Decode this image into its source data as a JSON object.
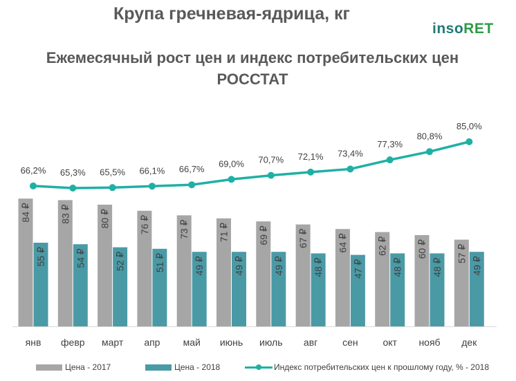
{
  "header": {
    "title": "Крупа гречневая-ядрица, кг",
    "subtitle_line1": "Ежемесячный рост цен и индекс потребительских цен",
    "subtitle_line2": "РОССТАТ",
    "logo_part1": "inso",
    "logo_part2": "RET"
  },
  "chart_data": {
    "type": "bar",
    "categories": [
      "янв",
      "февр",
      "март",
      "апр",
      "май",
      "июнь",
      "июль",
      "авг",
      "сен",
      "окт",
      "нояб",
      "дек"
    ],
    "series": [
      {
        "name": "Цена  - 2017",
        "type": "bar",
        "color": "#a6a6a6",
        "values": [
          84,
          83,
          80,
          76,
          73,
          71,
          69,
          67,
          64,
          62,
          60,
          57
        ],
        "labels": [
          "84 ₽",
          "83 ₽",
          "80 ₽",
          "76 ₽",
          "73 ₽",
          "71 ₽",
          "69 ₽",
          "67 ₽",
          "64 ₽",
          "62 ₽",
          "60 ₽",
          "57 ₽"
        ]
      },
      {
        "name": "Цена  - 2018",
        "type": "bar",
        "color": "#4a9aa6",
        "values": [
          55,
          54,
          52,
          51,
          49,
          49,
          49,
          48,
          47,
          48,
          48,
          49
        ],
        "labels": [
          "55 ₽",
          "54 ₽",
          "52 ₽",
          "51 ₽",
          "49 ₽",
          "49 ₽",
          "49 ₽",
          "48 ₽",
          "47 ₽",
          "48 ₽",
          "48 ₽",
          "49 ₽"
        ]
      },
      {
        "name": "Индекс потребительских цен к прошлому году, % - 2018",
        "type": "line",
        "color": "#1fb0a5",
        "values": [
          66.2,
          65.3,
          65.5,
          66.1,
          66.7,
          69.0,
          70.7,
          72.1,
          73.4,
          77.3,
          80.8,
          85.0
        ],
        "labels": [
          "66,2%",
          "65,3%",
          "65,5%",
          "66,1%",
          "66,7%",
          "69,0%",
          "70,7%",
          "72,1%",
          "73,4%",
          "77,3%",
          "80,8%",
          "85,0%"
        ]
      }
    ],
    "title": "Крупа гречневая-ядрица, кг",
    "subtitle": "Ежемесячный рост цен и индекс потребительских цен РОССТАТ",
    "xlabel": "",
    "ylabel": "",
    "legend": "bottom"
  }
}
